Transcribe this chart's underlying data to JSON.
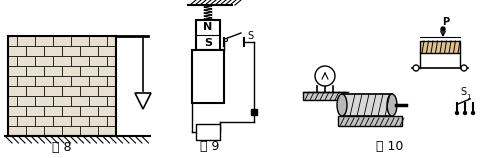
{
  "bg_color": "#ffffff",
  "fig8_label": "图 8",
  "fig9_label": "图 9",
  "fig10_label": "图 10",
  "brick_color": "#e8e0d0",
  "line_color": "#000000",
  "white": "#ffffff"
}
